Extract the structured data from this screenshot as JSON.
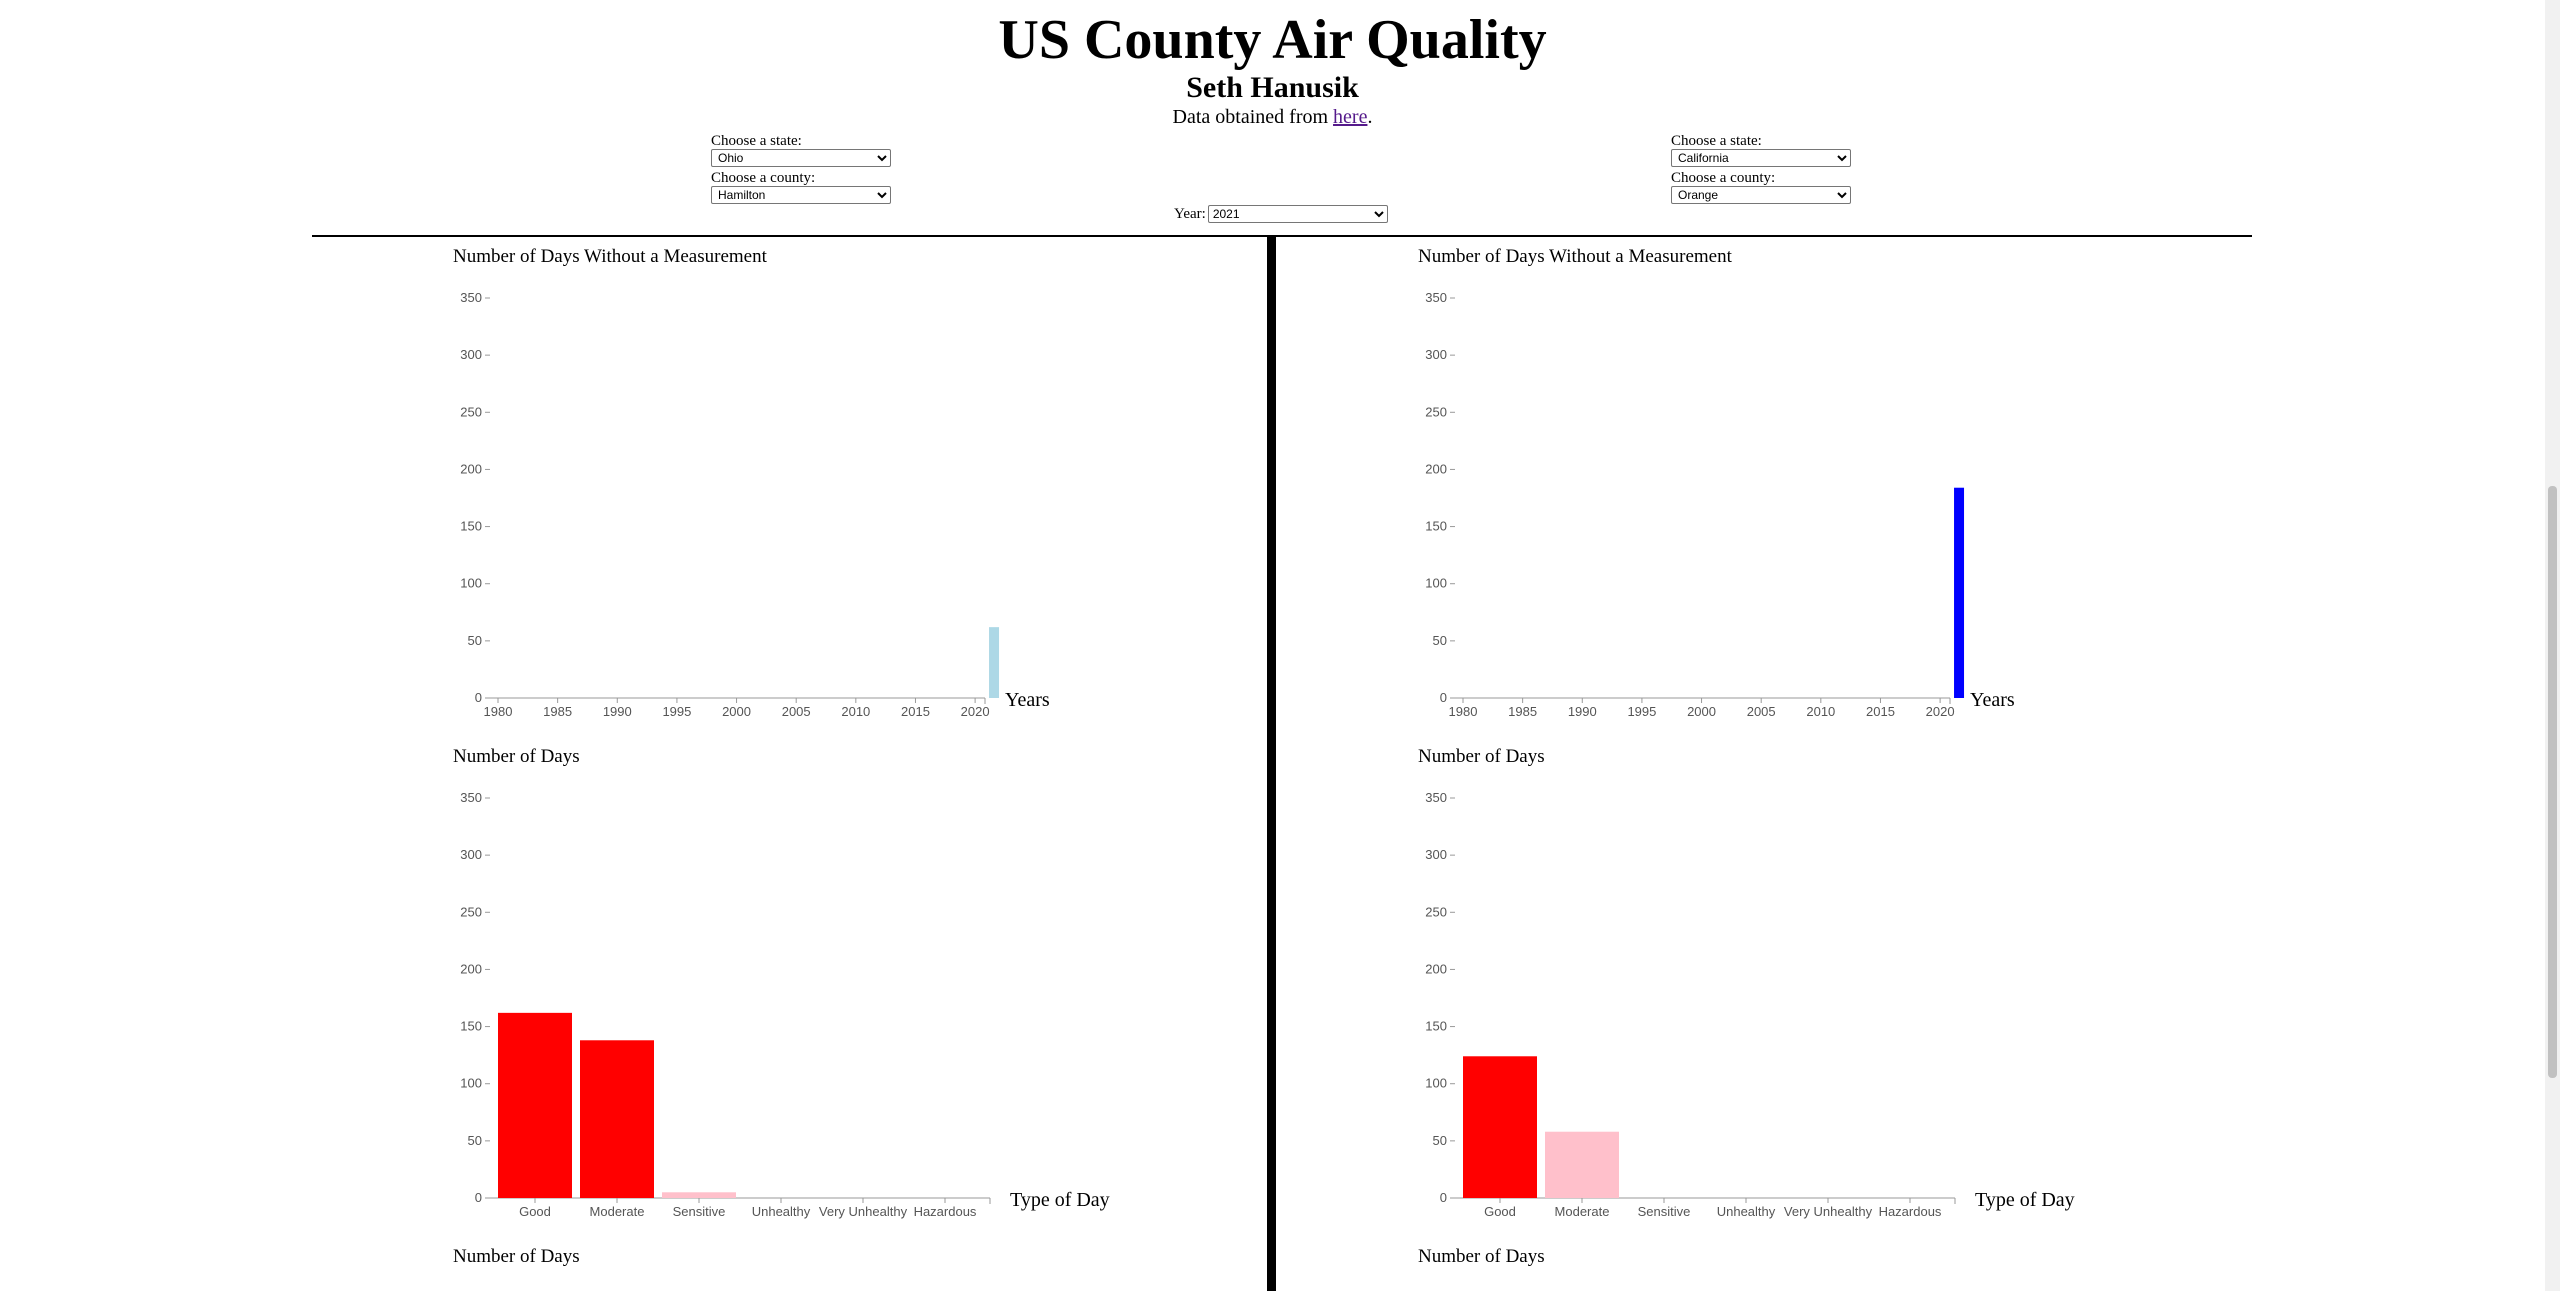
{
  "page": {
    "title": "US County Air Quality",
    "author": "Seth Hanusik",
    "source_prefix": "Data obtained from ",
    "source_link": "here",
    "source_suffix": "."
  },
  "left_panel": {
    "state_label": "Choose a state:",
    "state_value": "Ohio",
    "county_label": "Choose a county:",
    "county_value": "Hamilton"
  },
  "right_panel": {
    "state_label": "Choose a state:",
    "state_value": "California",
    "county_label": "Choose a county:",
    "county_value": "Orange"
  },
  "year_selector": {
    "label": "Year:",
    "value": "2021"
  },
  "colors": {
    "left_missing_bar": "#add8e6",
    "right_missing_bar": "#0000ff",
    "highlight_bar": "#ff0000",
    "secondary_bar": "#ffc0cb",
    "axis": "#999999"
  },
  "chart_data": [
    {
      "type": "bar",
      "panel": "left",
      "title": "Number of Days Without a Measurement",
      "xlabel": "Years",
      "ylabel": "",
      "x_ticks": [
        1980,
        1985,
        1990,
        1995,
        2000,
        2005,
        2010,
        2015,
        2020
      ],
      "y_ticks": [
        0,
        50,
        100,
        150,
        200,
        250,
        300,
        350
      ],
      "xlim": [
        1980,
        2021
      ],
      "ylim": [
        0,
        350
      ],
      "x": [
        2021
      ],
      "values": [
        62
      ]
    },
    {
      "type": "bar",
      "panel": "right",
      "title": "Number of Days Without a Measurement",
      "xlabel": "Years",
      "ylabel": "",
      "x_ticks": [
        1980,
        1985,
        1990,
        1995,
        2000,
        2005,
        2010,
        2015,
        2020
      ],
      "y_ticks": [
        0,
        50,
        100,
        150,
        200,
        250,
        300,
        350
      ],
      "xlim": [
        1980,
        2021
      ],
      "ylim": [
        0,
        350
      ],
      "x": [
        2021
      ],
      "values": [
        184
      ]
    },
    {
      "type": "bar",
      "panel": "left",
      "title": "Number of Days",
      "xlabel": "Type of Day",
      "ylabel": "",
      "categories": [
        "Good",
        "Moderate",
        "Sensitive",
        "Unhealthy",
        "Very Unhealthy",
        "Hazardous"
      ],
      "values": [
        162,
        138,
        5,
        0,
        0,
        0
      ],
      "y_ticks": [
        0,
        50,
        100,
        150,
        200,
        250,
        300,
        350
      ],
      "ylim": [
        0,
        350
      ]
    },
    {
      "type": "bar",
      "panel": "right",
      "title": "Number of Days",
      "xlabel": "Type of Day",
      "ylabel": "",
      "categories": [
        "Good",
        "Moderate",
        "Sensitive",
        "Unhealthy",
        "Very Unhealthy",
        "Hazardous"
      ],
      "values": [
        124,
        58,
        0,
        0,
        0,
        0
      ],
      "y_ticks": [
        0,
        50,
        100,
        150,
        200,
        250,
        300,
        350
      ],
      "ylim": [
        0,
        350
      ]
    }
  ],
  "bottom_titles": {
    "left": "Number of Days",
    "right": "Number of Days"
  }
}
